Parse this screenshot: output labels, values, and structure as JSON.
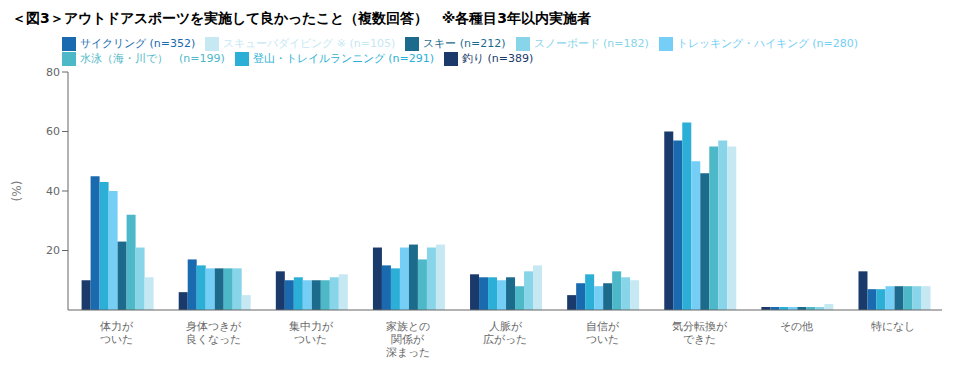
{
  "chart_data": {
    "type": "bar",
    "title": "＜図3＞アウトドアスポーツを実施して良かったこと（複数回答）　※各種目3年以内実施者",
    "categories": [
      "体力が\nついた",
      "身体つきが\n良くなった",
      "集中力が\nついた",
      "家族との\n関係が\n深まった",
      "人脈が\n広がった",
      "自信が\nついた",
      "気分転換が\nできた",
      "その他",
      "特になし"
    ],
    "series": [
      {
        "name": "釣り (n=389)",
        "color": "#1a3a6b",
        "values": [
          10,
          6,
          13,
          21,
          12,
          5,
          60,
          1,
          13
        ]
      },
      {
        "name": "サイクリング (n=352)",
        "color": "#1a6ab0",
        "values": [
          45,
          17,
          10,
          15,
          11,
          9,
          57,
          1,
          7
        ]
      },
      {
        "name": "登山・トレイルランニング (n=291)",
        "color": "#2bafd6",
        "values": [
          43,
          15,
          11,
          14,
          11,
          12,
          63,
          1,
          7
        ]
      },
      {
        "name": "トレッキング・ハイキング (n=280)",
        "color": "#74cef5",
        "values": [
          40,
          14,
          10,
          21,
          10,
          8,
          50,
          1,
          8
        ]
      },
      {
        "name": "スキー (n=212)",
        "color": "#1d6b8c",
        "values": [
          23,
          14,
          10,
          22,
          11,
          9,
          46,
          1,
          8
        ]
      },
      {
        "name": "水泳（海・川で）　(n=199)",
        "color": "#4db8c8",
        "values": [
          32,
          14,
          10,
          17,
          8,
          13,
          55,
          1,
          8
        ]
      },
      {
        "name": "スノーボード (n=182)",
        "color": "#88d4e8",
        "values": [
          21,
          14,
          11,
          21,
          13,
          11,
          57,
          1,
          8
        ]
      },
      {
        "name": "スキューバダイビング ※ (n=105)",
        "color": "#c5e8f2",
        "values": [
          11,
          5,
          12,
          22,
          15,
          10,
          55,
          2,
          8
        ]
      }
    ],
    "ylabel": "(%)",
    "ylim": [
      0,
      80
    ],
    "yticks": [
      20,
      40,
      60,
      80
    ],
    "grid": false
  }
}
